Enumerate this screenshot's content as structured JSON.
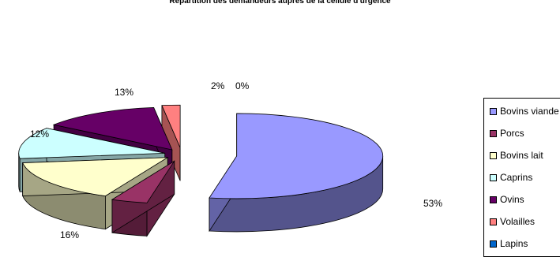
{
  "chart_data": {
    "type": "pie",
    "title": "Répartition des demandeurs auprès de la cellule d'urgence",
    "labels": [
      "Bovins viande",
      "Porcs",
      "Bovins lait",
      "Caprins",
      "Ovins",
      "Volailles",
      "Lapins"
    ],
    "values": [
      53,
      4,
      16,
      12,
      13,
      2,
      0
    ],
    "data_labels": [
      "53%",
      "",
      "16%",
      "12%",
      "13%",
      "2%",
      "0%"
    ],
    "colors": [
      "#9999FF",
      "#993366",
      "#FFFFCC",
      "#CCFFFF",
      "#660066",
      "#FF8080",
      "#0066CC"
    ],
    "legend_placement": "right",
    "style": "3d-exploded"
  },
  "legend": {
    "items": [
      {
        "label": "Bovins viande"
      },
      {
        "label": "Porcs"
      },
      {
        "label": "Bovins lait"
      },
      {
        "label": "Caprins"
      },
      {
        "label": "Ovins"
      },
      {
        "label": "Volailles"
      },
      {
        "label": "Lapins"
      }
    ]
  }
}
